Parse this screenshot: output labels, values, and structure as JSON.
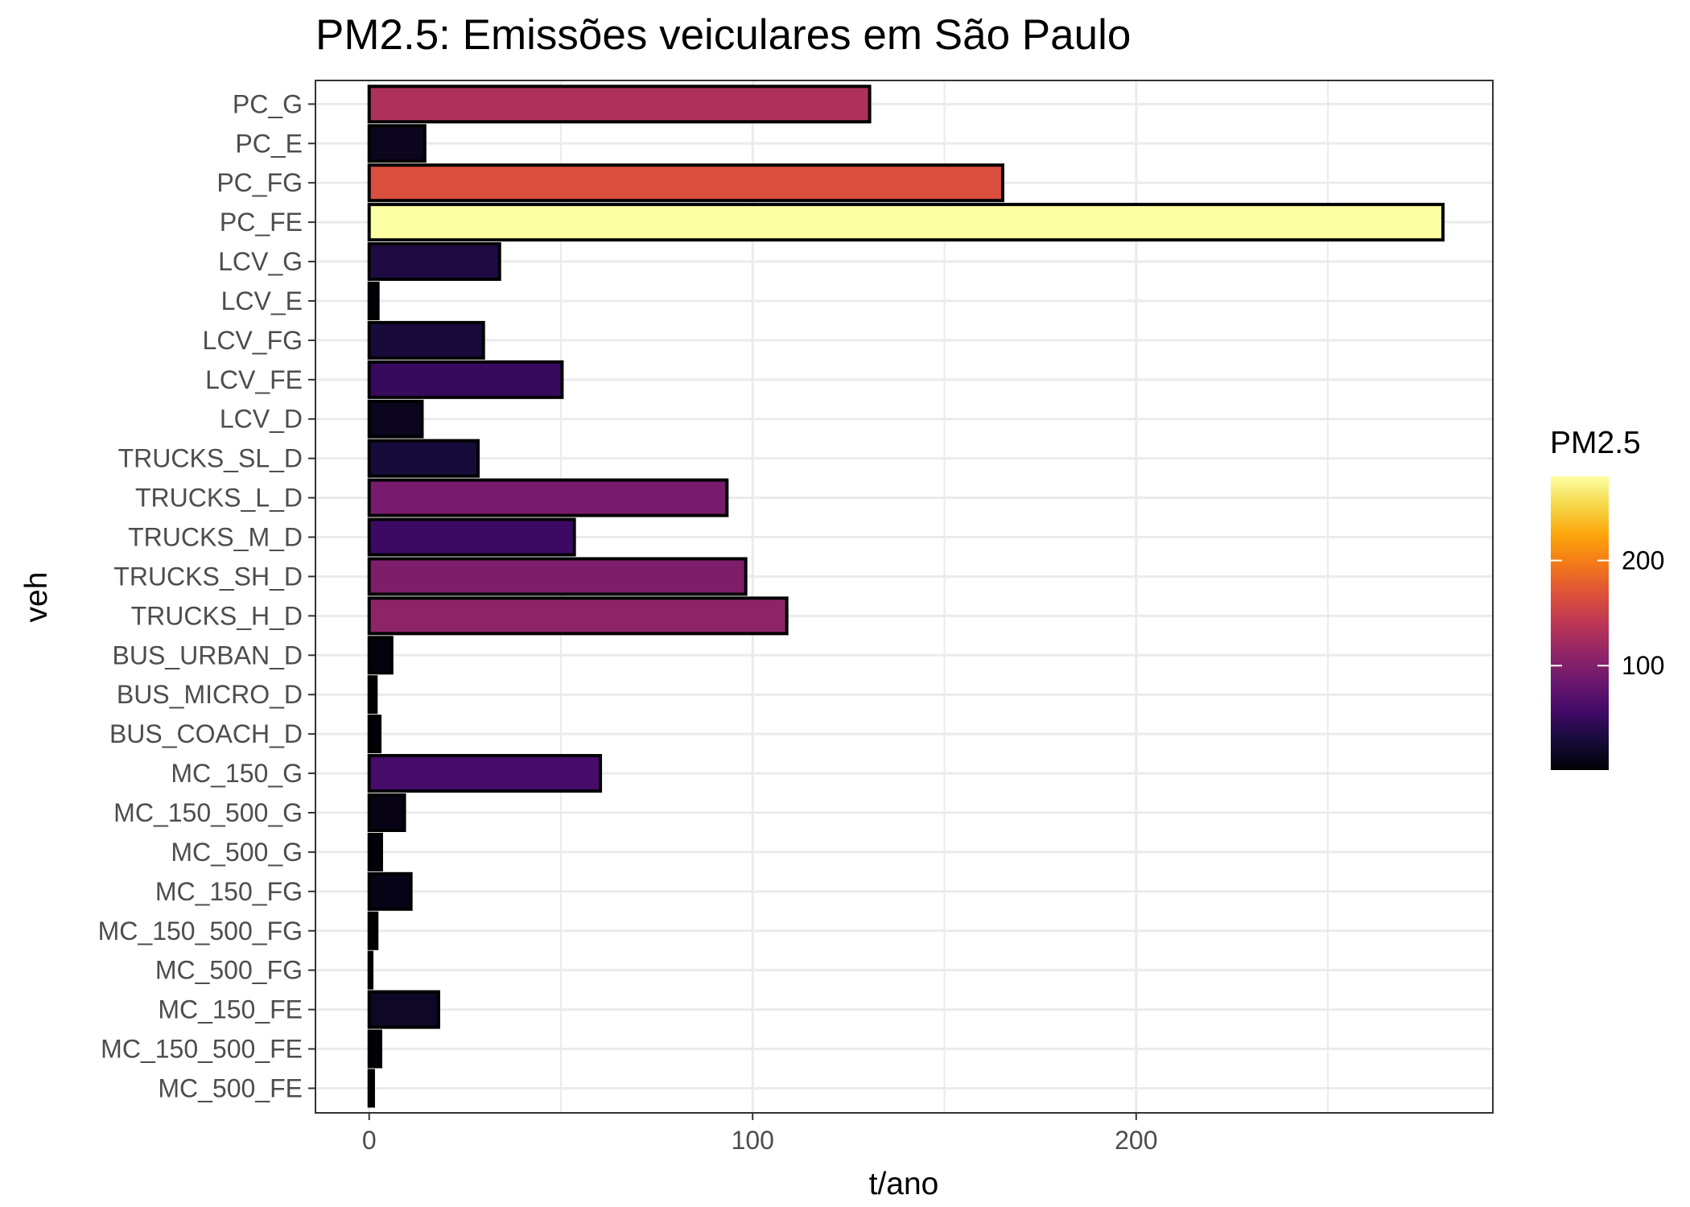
{
  "chart_data": {
    "type": "bar",
    "orientation": "horizontal",
    "title": "PM2.5: Emissões veiculares em São Paulo",
    "xlabel": "t/ano",
    "ylabel": "veh",
    "xlim": [
      -14,
      293
    ],
    "x_ticks": [
      0,
      100,
      200
    ],
    "grid": true,
    "color_scale": "inferno",
    "legend": {
      "title": "PM2.5",
      "position": "right",
      "range": [
        0.7,
        280
      ],
      "ticks": [
        100,
        200
      ]
    },
    "categories": [
      "PC_G",
      "PC_E",
      "PC_FG",
      "PC_FE",
      "LCV_G",
      "LCV_E",
      "LCV_FG",
      "LCV_FE",
      "LCV_D",
      "TRUCKS_SL_D",
      "TRUCKS_L_D",
      "TRUCKS_M_D",
      "TRUCKS_SH_D",
      "TRUCKS_H_D",
      "BUS_URBAN_D",
      "BUS_MICRO_D",
      "BUS_COACH_D",
      "MC_150_G",
      "MC_150_500_G",
      "MC_500_G",
      "MC_150_FG",
      "MC_150_500_FG",
      "MC_500_FG",
      "MC_150_FE",
      "MC_150_500_FE",
      "MC_500_FE"
    ],
    "values": [
      130.5,
      14.5,
      165.2,
      280.0,
      34.0,
      2.3,
      29.8,
      50.3,
      13.8,
      28.4,
      93.3,
      53.5,
      98.2,
      108.9,
      5.9,
      1.8,
      2.8,
      60.3,
      9.2,
      3.2,
      10.9,
      2.0,
      0.7,
      18.1,
      3.0,
      1.1
    ]
  }
}
